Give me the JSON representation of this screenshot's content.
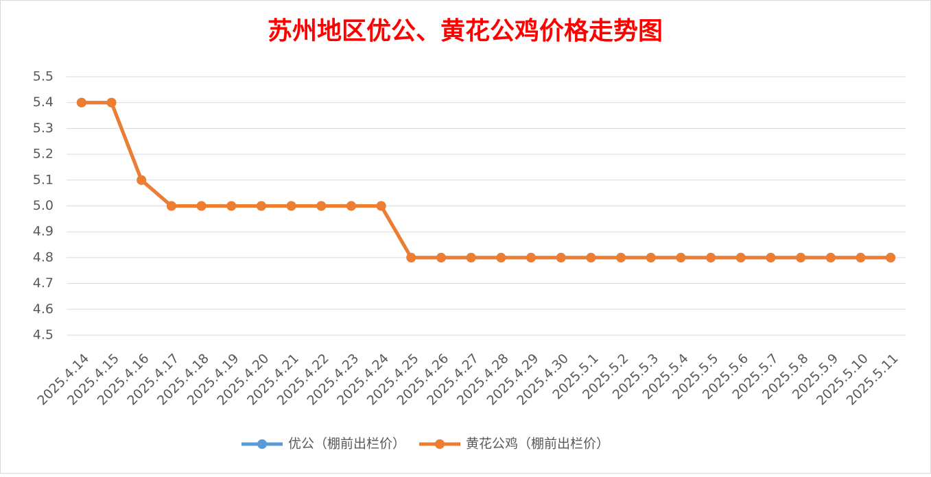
{
  "chart_data": {
    "type": "line",
    "title": "苏州地区优公、黄花公鸡价格走势图",
    "categories": [
      "2025.4.14",
      "2025.4.15",
      "2025.4.16",
      "2025.4.17",
      "2025.4.18",
      "2025.4.19",
      "2025.4.20",
      "2025.4.21",
      "2025.4.22",
      "2025.4.23",
      "2025.4.24",
      "2025.4.25",
      "2025.4.26",
      "2025.4.27",
      "2025.4.28",
      "2025.4.29",
      "2025.4.30",
      "2025.5.1",
      "2025.5.2",
      "2025.5.3",
      "2025.5.4",
      "2025.5.5",
      "2025.5.6",
      "2025.5.7",
      "2025.5.8",
      "2025.5.9",
      "2025.5.10",
      "2025.5.11"
    ],
    "series": [
      {
        "name": "优公（棚前出栏价）",
        "color": "#5b9bd5",
        "values": [
          5.4,
          5.4,
          5.1,
          5,
          5,
          5,
          5,
          5,
          5,
          5,
          5,
          4.8,
          4.8,
          4.8,
          4.8,
          4.8,
          4.8,
          4.8,
          4.8,
          4.8,
          4.8,
          4.8,
          4.8,
          4.8,
          4.8,
          4.8,
          4.8,
          4.8
        ]
      },
      {
        "name": "黄花公鸡（棚前出栏价）",
        "color": "#ed7d31",
        "values": [
          5.4,
          5.4,
          5.1,
          5,
          5,
          5,
          5,
          5,
          5,
          5,
          5,
          4.8,
          4.8,
          4.8,
          4.8,
          4.8,
          4.8,
          4.8,
          4.8,
          4.8,
          4.8,
          4.8,
          4.8,
          4.8,
          4.8,
          4.8,
          4.8,
          4.8
        ]
      }
    ],
    "ylim": [
      4.5,
      5.5
    ],
    "yticks": [
      4.5,
      4.6,
      4.7,
      4.8,
      4.9,
      {
        "value": 5,
        "label": "5.0"
      },
      5.1,
      5.2,
      5.3,
      5.4,
      5.5
    ],
    "grid": true
  }
}
